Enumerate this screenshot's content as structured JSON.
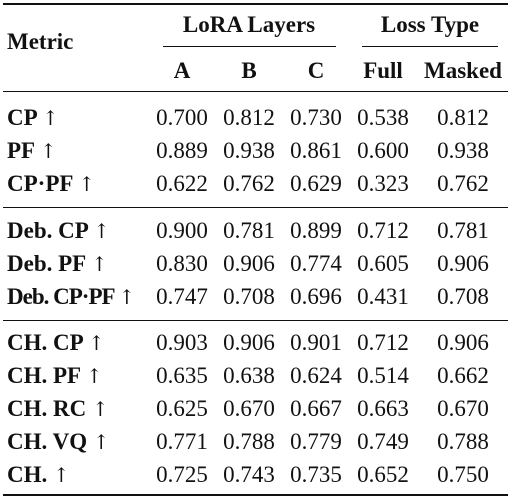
{
  "header": {
    "metric_label": "Metric",
    "group_lora": "LoRA Layers",
    "group_loss": "Loss Type",
    "columns": [
      "A",
      "B",
      "C",
      "Full",
      "Masked"
    ]
  },
  "arrow": "↑",
  "sections": [
    {
      "rows": [
        {
          "metric": "CP",
          "values": [
            "0.700",
            "0.812",
            "0.730",
            "0.538",
            "0.812"
          ]
        },
        {
          "metric": "PF",
          "values": [
            "0.889",
            "0.938",
            "0.861",
            "0.600",
            "0.938"
          ]
        },
        {
          "metric": "CP·PF",
          "values": [
            "0.622",
            "0.762",
            "0.629",
            "0.323",
            "0.762"
          ]
        }
      ]
    },
    {
      "rows": [
        {
          "metric": "Deb. CP",
          "values": [
            "0.900",
            "0.781",
            "0.899",
            "0.712",
            "0.781"
          ]
        },
        {
          "metric": "Deb. PF",
          "values": [
            "0.830",
            "0.906",
            "0.774",
            "0.605",
            "0.906"
          ]
        },
        {
          "metric": "Deb. CP·PF",
          "values": [
            "0.747",
            "0.708",
            "0.696",
            "0.431",
            "0.708"
          ]
        }
      ]
    },
    {
      "rows": [
        {
          "metric": "CH. CP",
          "values": [
            "0.903",
            "0.906",
            "0.901",
            "0.712",
            "0.906"
          ]
        },
        {
          "metric": "CH. PF",
          "values": [
            "0.635",
            "0.638",
            "0.624",
            "0.514",
            "0.662"
          ]
        },
        {
          "metric": "CH. RC",
          "values": [
            "0.625",
            "0.670",
            "0.667",
            "0.663",
            "0.670"
          ]
        },
        {
          "metric": "CH. VQ",
          "values": [
            "0.771",
            "0.788",
            "0.779",
            "0.749",
            "0.788"
          ]
        },
        {
          "metric": "CH.",
          "values": [
            "0.725",
            "0.743",
            "0.735",
            "0.652",
            "0.750"
          ]
        }
      ]
    }
  ]
}
